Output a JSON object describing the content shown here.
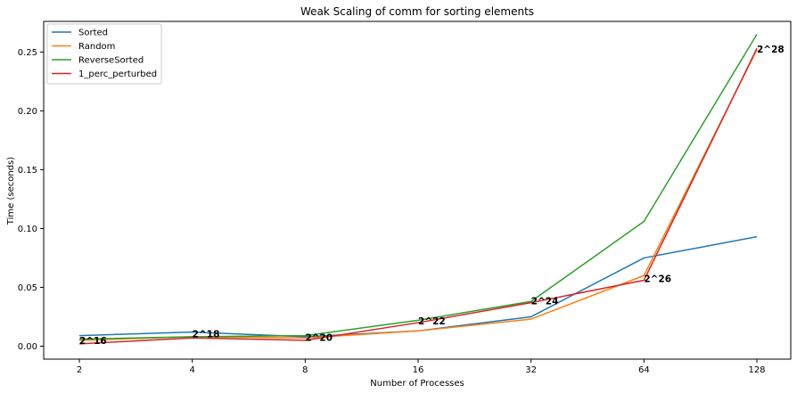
{
  "chart_data": {
    "type": "line",
    "title": "Weak Scaling of comm for sorting elements",
    "xlabel": "Number of Processes",
    "ylabel": "Time (seconds)",
    "x": [
      2,
      4,
      8,
      16,
      32,
      64,
      128
    ],
    "x_scale": "log2",
    "x_ticks": [
      "2",
      "4",
      "8",
      "16",
      "32",
      "64",
      "128"
    ],
    "y_ticks": [
      "0.00",
      "0.05",
      "0.10",
      "0.15",
      "0.20",
      "0.25"
    ],
    "y_tick_values": [
      0,
      0.05,
      0.1,
      0.15,
      0.2,
      0.25
    ],
    "ylim": [
      -0.011,
      0.276
    ],
    "grid": false,
    "legend_position": "top-left",
    "series": [
      {
        "name": "Sorted",
        "color": "#1f77b4",
        "values": [
          0.009,
          0.012,
          0.008,
          0.013,
          0.025,
          0.075,
          0.093
        ]
      },
      {
        "name": "Random",
        "color": "#ff7f0e",
        "values": [
          0.005,
          0.008,
          0.007,
          0.013,
          0.023,
          0.06,
          0.252
        ]
      },
      {
        "name": "ReverseSorted",
        "color": "#2ca02c",
        "values": [
          0.006,
          0.008,
          0.009,
          0.022,
          0.038,
          0.106,
          0.265
        ]
      },
      {
        "name": "1_perc_perturbed",
        "color": "#d62728",
        "values": [
          0.002,
          0.007,
          0.005,
          0.02,
          0.037,
          0.056,
          0.253
        ]
      }
    ],
    "annotations": [
      {
        "text": "2^16",
        "x": 2,
        "y": 0.005
      },
      {
        "text": "2^18",
        "x": 4,
        "y": 0.0105
      },
      {
        "text": "2^20",
        "x": 8,
        "y": 0.0075
      },
      {
        "text": "2^22",
        "x": 16,
        "y": 0.0215
      },
      {
        "text": "2^24",
        "x": 32,
        "y": 0.0385
      },
      {
        "text": "2^26",
        "x": 64,
        "y": 0.0575
      },
      {
        "text": "2^28",
        "x": 128,
        "y": 0.2525
      }
    ]
  }
}
